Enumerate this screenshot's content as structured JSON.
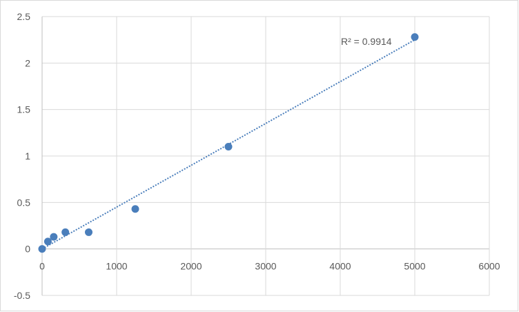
{
  "chart_data": {
    "type": "scatter",
    "title": "",
    "xlabel": "",
    "ylabel": "",
    "xlim": [
      0,
      6000
    ],
    "ylim": [
      -0.5,
      2.5
    ],
    "x_ticks": [
      0,
      1000,
      2000,
      3000,
      4000,
      5000,
      6000
    ],
    "y_ticks": [
      -0.5,
      0,
      0.5,
      1,
      1.5,
      2,
      2.5
    ],
    "x_tick_labels": [
      "0",
      "1000",
      "2000",
      "3000",
      "4000",
      "5000",
      "6000"
    ],
    "y_tick_labels": [
      "-0.5",
      "0",
      "0.5",
      "1",
      "1.5",
      "2",
      "2.5"
    ],
    "grid": true,
    "legend": "none",
    "series": [
      {
        "x": [
          0,
          78,
          156,
          312,
          625,
          1250,
          2500,
          5000
        ],
        "y": [
          0.0,
          0.08,
          0.13,
          0.18,
          0.18,
          0.43,
          1.1,
          2.28
        ],
        "marker_color": "#4a7ebb"
      }
    ],
    "trendline": {
      "type": "linear",
      "x": [
        0,
        5000
      ],
      "y": [
        0.0,
        2.25
      ],
      "style": "dotted",
      "color": "#4a7ebb"
    },
    "annotations": [
      {
        "text": "R² = 0.9914"
      }
    ]
  },
  "colors": {
    "grid": "#d9d9d9",
    "axis": "#bfbfbf",
    "text": "#595959",
    "marker": "#4a7ebb",
    "frame": "#d9d9d9"
  }
}
